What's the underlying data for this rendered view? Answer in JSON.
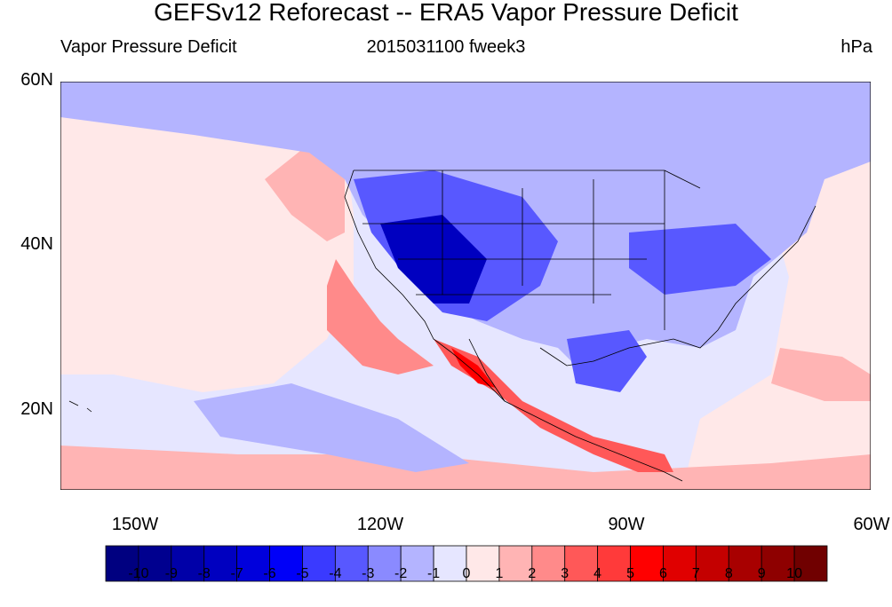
{
  "title": "GEFSv12 Reforecast -- ERA5 Vapor Pressure Deficit",
  "left_subtitle": "Vapor Pressure Deficit",
  "center_subtitle": "2015031100 fweek3",
  "right_subtitle": "hPa",
  "lat_labels": [
    "60N",
    "40N",
    "20N"
  ],
  "lon_labels": [
    "150W",
    "120W",
    "90W",
    "60W"
  ],
  "colorbar": {
    "labels": [
      "-10",
      "-9",
      "-8",
      "-7",
      "-6",
      "-5",
      "-4",
      "-3",
      "-2",
      "-1",
      "0",
      "1",
      "2",
      "3",
      "4",
      "5",
      "6",
      "7",
      "8",
      "9",
      "10"
    ],
    "colors": [
      "#000080",
      "#00008f",
      "#0000a8",
      "#0000c0",
      "#0000dc",
      "#0000f8",
      "#3a3aff",
      "#5858ff",
      "#8a8aff",
      "#b4b4ff",
      "#e6e6ff",
      "#ffe8e8",
      "#ffb4b4",
      "#ff8a8a",
      "#ff5858",
      "#ff3a3a",
      "#ff0000",
      "#e00000",
      "#c40000",
      "#a80000",
      "#8e0000",
      "#700000"
    ]
  }
}
